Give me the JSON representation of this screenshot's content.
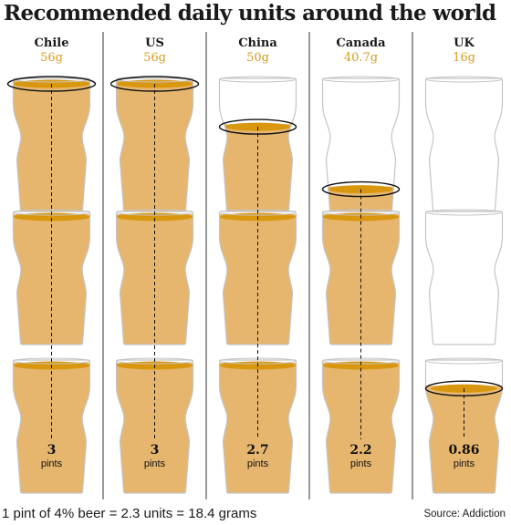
{
  "title": "Recommended daily units around the world",
  "footer_note": "1 pint of 4% beer = 2.3 units = 18.4 grams",
  "source": "Source: Addiction",
  "colors": {
    "beer": "#e6b66e",
    "foam": "#d9970f",
    "grams_text": "#d99a1c",
    "divider": "#333333",
    "glass_outline": "#c4c4c4"
  },
  "chart_data": {
    "type": "pictogram",
    "unit_label": "pints",
    "glasses_per_column": 3,
    "countries": [
      {
        "name": "Chile",
        "grams_label": "56g",
        "pints": 3,
        "pints_label": "3"
      },
      {
        "name": "US",
        "grams_label": "56g",
        "pints": 3,
        "pints_label": "3"
      },
      {
        "name": "China",
        "grams_label": "50g",
        "pints": 2.7,
        "pints_label": "2.7"
      },
      {
        "name": "Canada",
        "grams_label": "40.7g",
        "pints": 2.2,
        "pints_label": "2.2"
      },
      {
        "name": "UK",
        "grams_label": "16g",
        "pints": 0.86,
        "pints_label": "0.86"
      }
    ]
  }
}
